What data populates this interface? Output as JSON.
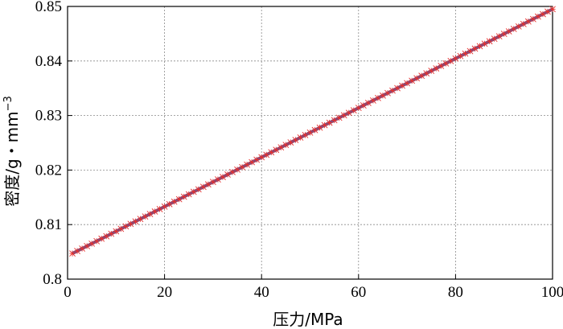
{
  "chart_data": {
    "type": "line",
    "xlabel": "压力/MPa",
    "ylabel": "密度/g・mm",
    "ylabel_superscript": "−3",
    "xlim": [
      0,
      100
    ],
    "ylim": [
      0.8,
      0.85
    ],
    "x_ticks": [
      "0",
      "20",
      "40",
      "60",
      "80",
      "100"
    ],
    "y_ticks": [
      "0.8",
      "0.81",
      "0.82",
      "0.83",
      "0.84",
      "0.85"
    ],
    "grid": true,
    "series": [
      {
        "style": "line",
        "color": "#4a5aa8",
        "x": [
          1,
          100
        ],
        "y": [
          0.8047,
          0.8495
        ]
      },
      {
        "style": "markers",
        "marker": "asterisk",
        "color": "#e8302c",
        "x_range": [
          1,
          100
        ],
        "x_step": 1,
        "y_start": 0.8047,
        "y_end": 0.8495
      }
    ]
  }
}
